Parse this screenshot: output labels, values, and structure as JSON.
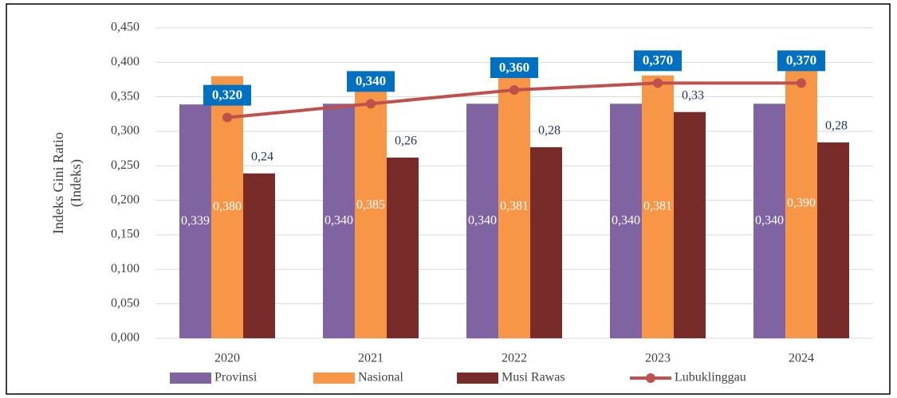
{
  "chart_data": {
    "type": "bar-line",
    "y_label": [
      "Indeks Gini Ratio",
      "(Indeks)"
    ],
    "categories": [
      "2020",
      "2021",
      "2022",
      "2023",
      "2024"
    ],
    "ylim": [
      0,
      0.45
    ],
    "yticks": [
      {
        "value": 0,
        "label": "0,000"
      },
      {
        "value": 0.05,
        "label": "0,050"
      },
      {
        "value": 0.1,
        "label": "0,100"
      },
      {
        "value": 0.15,
        "label": "0,150"
      },
      {
        "value": 0.2,
        "label": "0,200"
      },
      {
        "value": 0.25,
        "label": "0,250"
      },
      {
        "value": 0.3,
        "label": "0,300"
      },
      {
        "value": 0.35,
        "label": "0,350"
      },
      {
        "value": 0.4,
        "label": "0,400"
      },
      {
        "value": 0.45,
        "label": "0,450"
      }
    ],
    "grid": true,
    "series": [
      {
        "name": "Provinsi",
        "kind": "bar",
        "color": "#8064a2",
        "values": [
          0.339,
          0.34,
          0.34,
          0.34,
          0.34
        ],
        "value_labels": [
          "0,339",
          "0,340",
          "0,340",
          "0,340",
          "0,340"
        ]
      },
      {
        "name": "Nasional",
        "kind": "bar",
        "color": "#f79646",
        "values": [
          0.38,
          0.385,
          0.381,
          0.381,
          0.39
        ],
        "value_labels": [
          "0,380",
          "0,385",
          "0,381",
          "0,381",
          "0,390"
        ]
      },
      {
        "name": "Musi Rawas",
        "kind": "bar",
        "color": "#772c2a",
        "values": [
          0.239,
          0.262,
          0.277,
          0.328,
          0.284
        ],
        "value_labels": [
          "0,24",
          "0,26",
          "0,28",
          "0,33",
          "0,28"
        ]
      },
      {
        "name": "Lubuklinggau",
        "kind": "line",
        "color": "#c0504d",
        "values": [
          0.32,
          0.34,
          0.36,
          0.37,
          0.37
        ],
        "value_labels": [
          "0,320",
          "0,340",
          "0,360",
          "0,370",
          "0,370"
        ]
      }
    ]
  }
}
